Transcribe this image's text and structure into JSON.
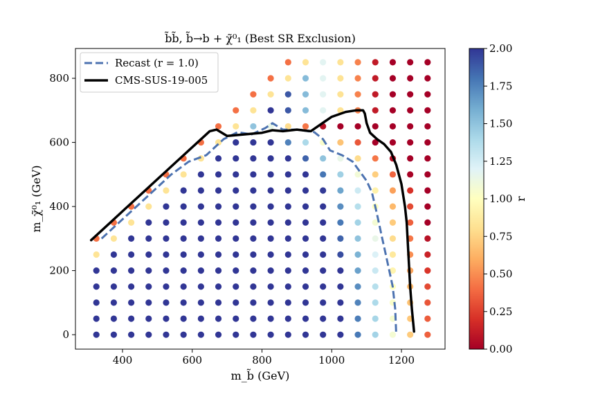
{
  "chart_data": {
    "type": "scatter",
    "title": "b̃b̃, b̃→b + χ̃⁰₁ (Best SR Exclusion)",
    "xlabel": "m_b̃ (GeV)",
    "ylabel": "m_χ̃⁰₁ (GeV)",
    "xlim": [
      265,
      1325
    ],
    "ylim": [
      -45,
      893
    ],
    "xticks": [
      400,
      600,
      800,
      1000,
      1200
    ],
    "yticks": [
      0,
      200,
      400,
      600,
      800
    ],
    "grid": false,
    "legend_position": "top-left",
    "colorbar": {
      "label": "r",
      "range": [
        0.0,
        2.0
      ],
      "ticks": [
        "0.00",
        "0.25",
        "0.50",
        "0.75",
        "1.00",
        "1.25",
        "1.50",
        "1.75",
        "2.00"
      ],
      "colormap": "RdYlBu",
      "colors": [
        "#a50026",
        "#d73027",
        "#f46d43",
        "#fdae61",
        "#fee090",
        "#ffffbf",
        "#e0f3f8",
        "#abd9e9",
        "#74add1",
        "#4575b4",
        "#313695"
      ]
    },
    "grid_points": {
      "mass_x": [
        325,
        375,
        425,
        475,
        525,
        575,
        625,
        675,
        725,
        775,
        825,
        875,
        925,
        975,
        1025,
        1075,
        1125,
        1175,
        1225,
        1275
      ],
      "mass_y": [
        0,
        50,
        100,
        150,
        200,
        250,
        300,
        350,
        400,
        450,
        500,
        550,
        600,
        650,
        700,
        750,
        800,
        850
      ],
      "max_y_per_x": [
        300,
        350,
        400,
        450,
        500,
        550,
        600,
        650,
        700,
        750,
        800,
        850,
        850,
        850,
        850,
        850,
        850,
        850,
        850,
        850
      ]
    },
    "series": [
      {
        "name": "Recast (r = 1.0)",
        "style": "dashed",
        "color": "#4c72b0",
        "x": [
          340,
          390,
          440,
          490,
          540,
          590,
          640,
          690,
          730,
          770,
          810,
          830,
          860,
          900,
          950,
          975,
          995,
          1030,
          1060,
          1080,
          1100,
          1115,
          1125,
          1135,
          1145,
          1155,
          1165,
          1175,
          1182,
          1185
        ],
        "y": [
          300,
          350,
          400,
          450,
          500,
          540,
          560,
          610,
          632,
          625,
          645,
          660,
          640,
          640,
          632,
          610,
          575,
          560,
          540,
          510,
          480,
          445,
          400,
          350,
          300,
          250,
          200,
          150,
          80,
          0
        ]
      },
      {
        "name": "CMS-SUS-19-005",
        "style": "solid",
        "color": "#000000",
        "x": [
          310,
          360,
          410,
          460,
          510,
          560,
          610,
          650,
          670,
          700,
          750,
          800,
          830,
          860,
          900,
          940,
          960,
          980,
          1000,
          1040,
          1070,
          1090,
          1095,
          1100,
          1110,
          1130,
          1150,
          1170,
          1185,
          1200,
          1210,
          1215,
          1220,
          1225,
          1230,
          1236
        ],
        "y": [
          295,
          345,
          395,
          445,
          495,
          545,
          595,
          635,
          640,
          620,
          625,
          630,
          638,
          635,
          640,
          635,
          650,
          665,
          680,
          695,
          700,
          700,
          690,
          660,
          630,
          610,
          595,
          570,
          530,
          470,
          400,
          350,
          250,
          150,
          80,
          10
        ]
      }
    ]
  }
}
